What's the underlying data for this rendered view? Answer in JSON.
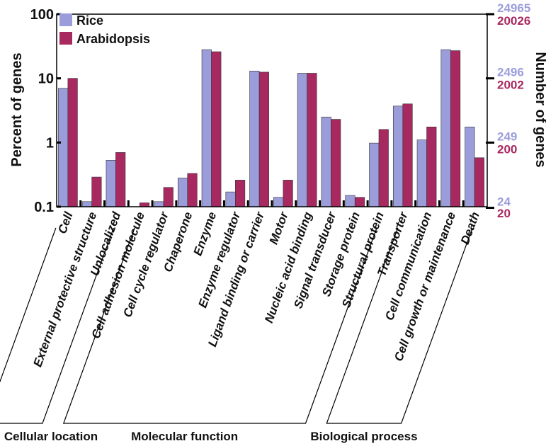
{
  "chart_data": {
    "type": "bar",
    "log_scale": true,
    "ylabel": "Percent of genes",
    "y2label": "Number of genes",
    "categories": [
      "Cell",
      "External protective structure",
      "Unlocalized",
      "Cell adhesion molecule",
      "Cell cycle regulator",
      "Chaperone",
      "Enzyme",
      "Enzyme regulator",
      "Ligand binding or carrier",
      "Motor",
      "Nucleic acid binding",
      "Signal transducer",
      "Storage protein",
      "Structural protein",
      "Transporter",
      "Cell communication",
      "Cell growth or maintenance",
      "Death"
    ],
    "series": [
      {
        "name": "Rice",
        "color": "#9b9ddb",
        "values": [
          7,
          0.12,
          0.53,
          null,
          0.12,
          0.28,
          28,
          0.17,
          13,
          0.14,
          12,
          2.5,
          0.15,
          0.98,
          3.7,
          1.1,
          28,
          1.75
        ]
      },
      {
        "name": "Arabidopsis",
        "color": "#a82860",
        "values": [
          10,
          0.29,
          0.7,
          0.115,
          0.2,
          0.33,
          26,
          0.26,
          12.5,
          0.26,
          12,
          2.3,
          0.14,
          1.6,
          4,
          1.75,
          27,
          0.58
        ]
      }
    ],
    "ylim": [
      0.1,
      100
    ],
    "yticks": [
      100,
      10,
      1,
      0.1
    ],
    "y2lim": [
      24.965,
      24965
    ],
    "y2ticks": [
      24965,
      2496,
      249,
      24
    ],
    "y2color": "#9b9ddb",
    "y3lim": [
      20.026,
      20026
    ],
    "y3ticks": [
      20026,
      2002,
      200,
      20
    ],
    "y3color": "#a82860",
    "groups": [
      {
        "label": "Cellular location",
        "span": 3
      },
      {
        "label": "Molecular function",
        "span": 11
      },
      {
        "label": "Biological process",
        "span": 4
      }
    ]
  }
}
